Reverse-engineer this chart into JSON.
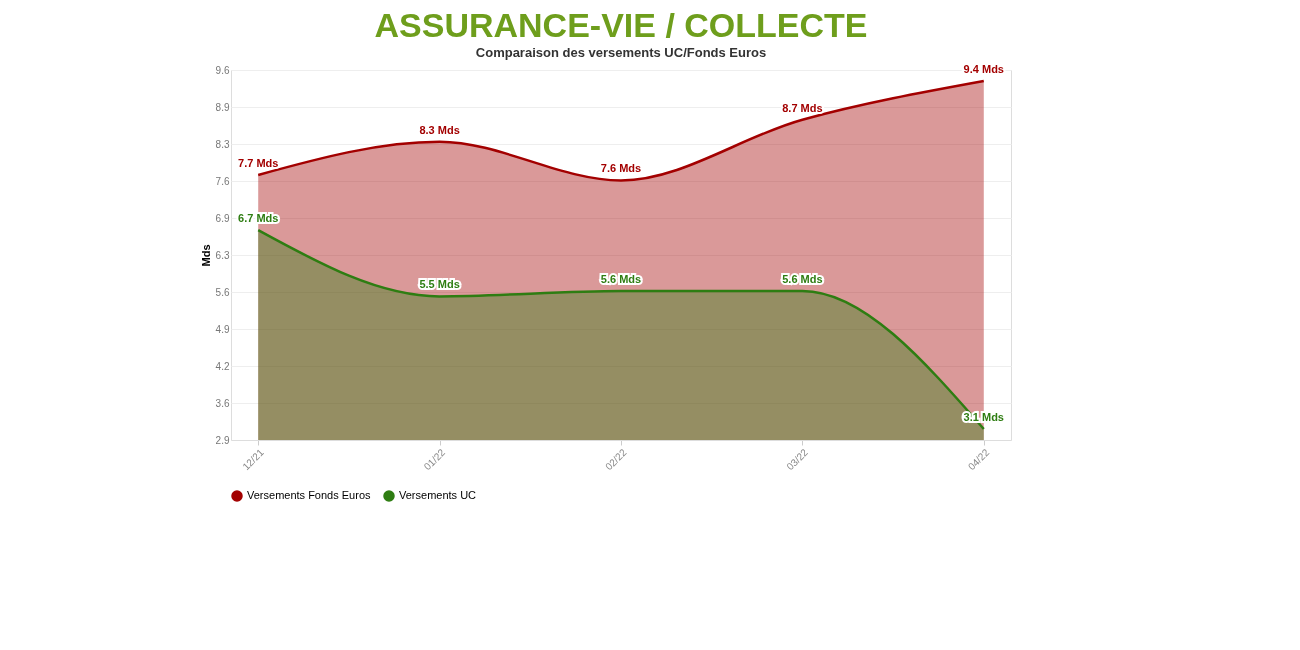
{
  "chart_data": {
    "type": "area",
    "title": "ASSURANCE-VIE / COLLECTE",
    "subtitle": "Comparaison des versements UC/Fonds Euros",
    "ylabel": "Mds",
    "categories": [
      "12/21",
      "01/22",
      "02/22",
      "03/22",
      "04/22"
    ],
    "series": [
      {
        "name": "Versements Fonds Euros",
        "color": "#a30000",
        "values": [
          7.7,
          8.3,
          7.6,
          8.7,
          9.4
        ],
        "value_labels": [
          "7.7 Mds",
          "8.3 Mds",
          "7.6 Mds",
          "8.7 Mds",
          "9.4 Mds"
        ]
      },
      {
        "name": "Versements UC",
        "color": "#2e7d12",
        "values": [
          6.7,
          5.5,
          5.6,
          5.6,
          3.1
        ],
        "value_labels": [
          "6.7 Mds",
          "5.5 Mds",
          "5.6 Mds",
          "5.6 Mds",
          "3.1 Mds"
        ]
      }
    ],
    "ylim": [
      2.9,
      9.6
    ],
    "yticks": [
      2.9,
      {
        "value": 3.57,
        "label": "3.6"
      },
      {
        "value": 4.24,
        "label": "4.2"
      },
      {
        "value": 4.91,
        "label": "4.9"
      },
      {
        "value": 5.58,
        "label": "5.6"
      },
      {
        "value": 6.25,
        "label": "6.3"
      },
      {
        "value": 6.92,
        "label": "6.9"
      },
      {
        "value": 7.59,
        "label": "7.6"
      },
      {
        "value": 8.26,
        "label": "8.3"
      },
      {
        "value": 8.93,
        "label": "8.9"
      },
      9.6
    ],
    "grid": "y",
    "legend": "bottom",
    "line_style": "solid"
  }
}
